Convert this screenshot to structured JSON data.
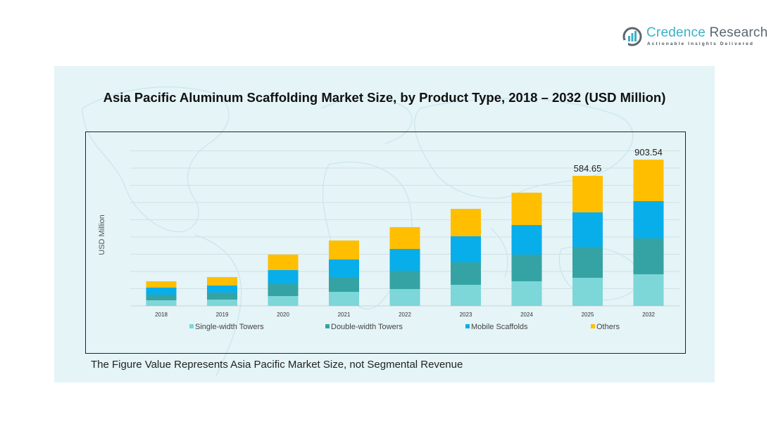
{
  "brand": {
    "name_part1": "Credence",
    "name_part2": "Research",
    "tagline": "Actionable Insights Delivered"
  },
  "footnote": "The Figure Value Represents Asia Pacific Market Size, not Segmental Revenue",
  "colors": {
    "single_width": "#7dd6d8",
    "double_width": "#35a3a3",
    "mobile": "#08aeea",
    "others": "#ffbf00",
    "panel_bg": "#e4f4f7"
  },
  "chart_data": {
    "type": "bar",
    "stacked": true,
    "title": "Asia Pacific Aluminum Scaffolding Market Size, by Product Type, 2018 – 2032 (USD Million)",
    "xlabel": "",
    "ylabel": "USD Million",
    "categories": [
      "2018",
      "2019",
      "2020",
      "2021",
      "2022",
      "2023",
      "2024",
      "2025",
      "2032"
    ],
    "series": [
      {
        "name": "Single-width Towers",
        "color": "#7dd6d8",
        "values": [
          25.3,
          28.4,
          44.2,
          63.2,
          75.8,
          94.8,
          110.6,
          126.4,
          195.5
        ]
      },
      {
        "name": "Double-width Towers",
        "color": "#35a3a3",
        "values": [
          25.3,
          31.6,
          53.7,
          66.4,
          82.2,
          101.1,
          120.1,
          139.1,
          221.5
        ]
      },
      {
        "name": "Mobile Scaffolds",
        "color": "#08aeea",
        "values": [
          31.6,
          31.6,
          63.2,
          79.0,
          98.0,
          117.0,
          132.7,
          154.9,
          230.2
        ]
      },
      {
        "name": "Others",
        "color": "#ffbf00",
        "values": [
          28.4,
          37.9,
          69.5,
          85.3,
          98.0,
          123.2,
          145.4,
          164.25,
          256.34
        ]
      }
    ],
    "totals": [
      110.6,
      129.5,
      230.6,
      293.9,
      354.0,
      436.1,
      508.8,
      584.65,
      903.54
    ],
    "data_labels": [
      {
        "category": "2025",
        "text": "584.65"
      },
      {
        "category": "2032",
        "text": "903.54"
      }
    ],
    "gridlines": 10,
    "grid": true,
    "y_ticks_visible": false,
    "legend_position": "bottom",
    "legend": [
      "Single-width Towers",
      "Double-width Towers",
      "Mobile Scaffolds",
      "Others"
    ]
  }
}
